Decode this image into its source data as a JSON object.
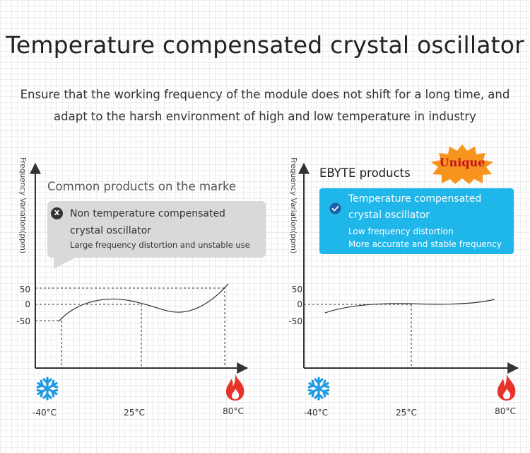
{
  "title": "Temperature compensated crystal oscillator",
  "subtitle": {
    "line1": "Ensure that the working frequency of the module does not shift for a long time, and",
    "line2": "adapt to the harsh environment of high and low temperature in industry"
  },
  "left_panel": {
    "y_axis_label": "Frequency Variation(ppm)",
    "heading": "Common products on the marke",
    "callout": {
      "icon": "x-circle-icon",
      "title_line1": "Non temperature compensated",
      "title_line2": "crystal oscillator",
      "detail": "Large frequency distortion and unstable use"
    },
    "y_ticks": [
      "50",
      "0",
      "-50"
    ],
    "x_ticks": [
      "-40°C",
      "25°C",
      "80°C"
    ]
  },
  "right_panel": {
    "y_axis_label": "Frequency Variation(ppm)",
    "heading": "EBYTE products",
    "badge": "Unique",
    "callout": {
      "icon": "check-circle-icon",
      "title_line1": "Temperature compensated",
      "title_line2": "crystal oscillator",
      "detail_line1": "Low frequency distortion",
      "detail_line2": "More accurate and stable frequency"
    },
    "y_ticks": [
      "50",
      "0",
      "-50"
    ],
    "x_ticks": [
      "-40°C",
      "25°C",
      "80°C"
    ]
  },
  "icons": {
    "cold": "snowflake-icon",
    "hot": "flame-icon"
  },
  "colors": {
    "accent_blue": "#1fb6ea",
    "snowflake": "#1e9be4",
    "flame": "#e8332a",
    "badge_orange": "#f7941d",
    "badge_text": "#c1121f",
    "callout_gray": "#d9d9d9"
  }
}
